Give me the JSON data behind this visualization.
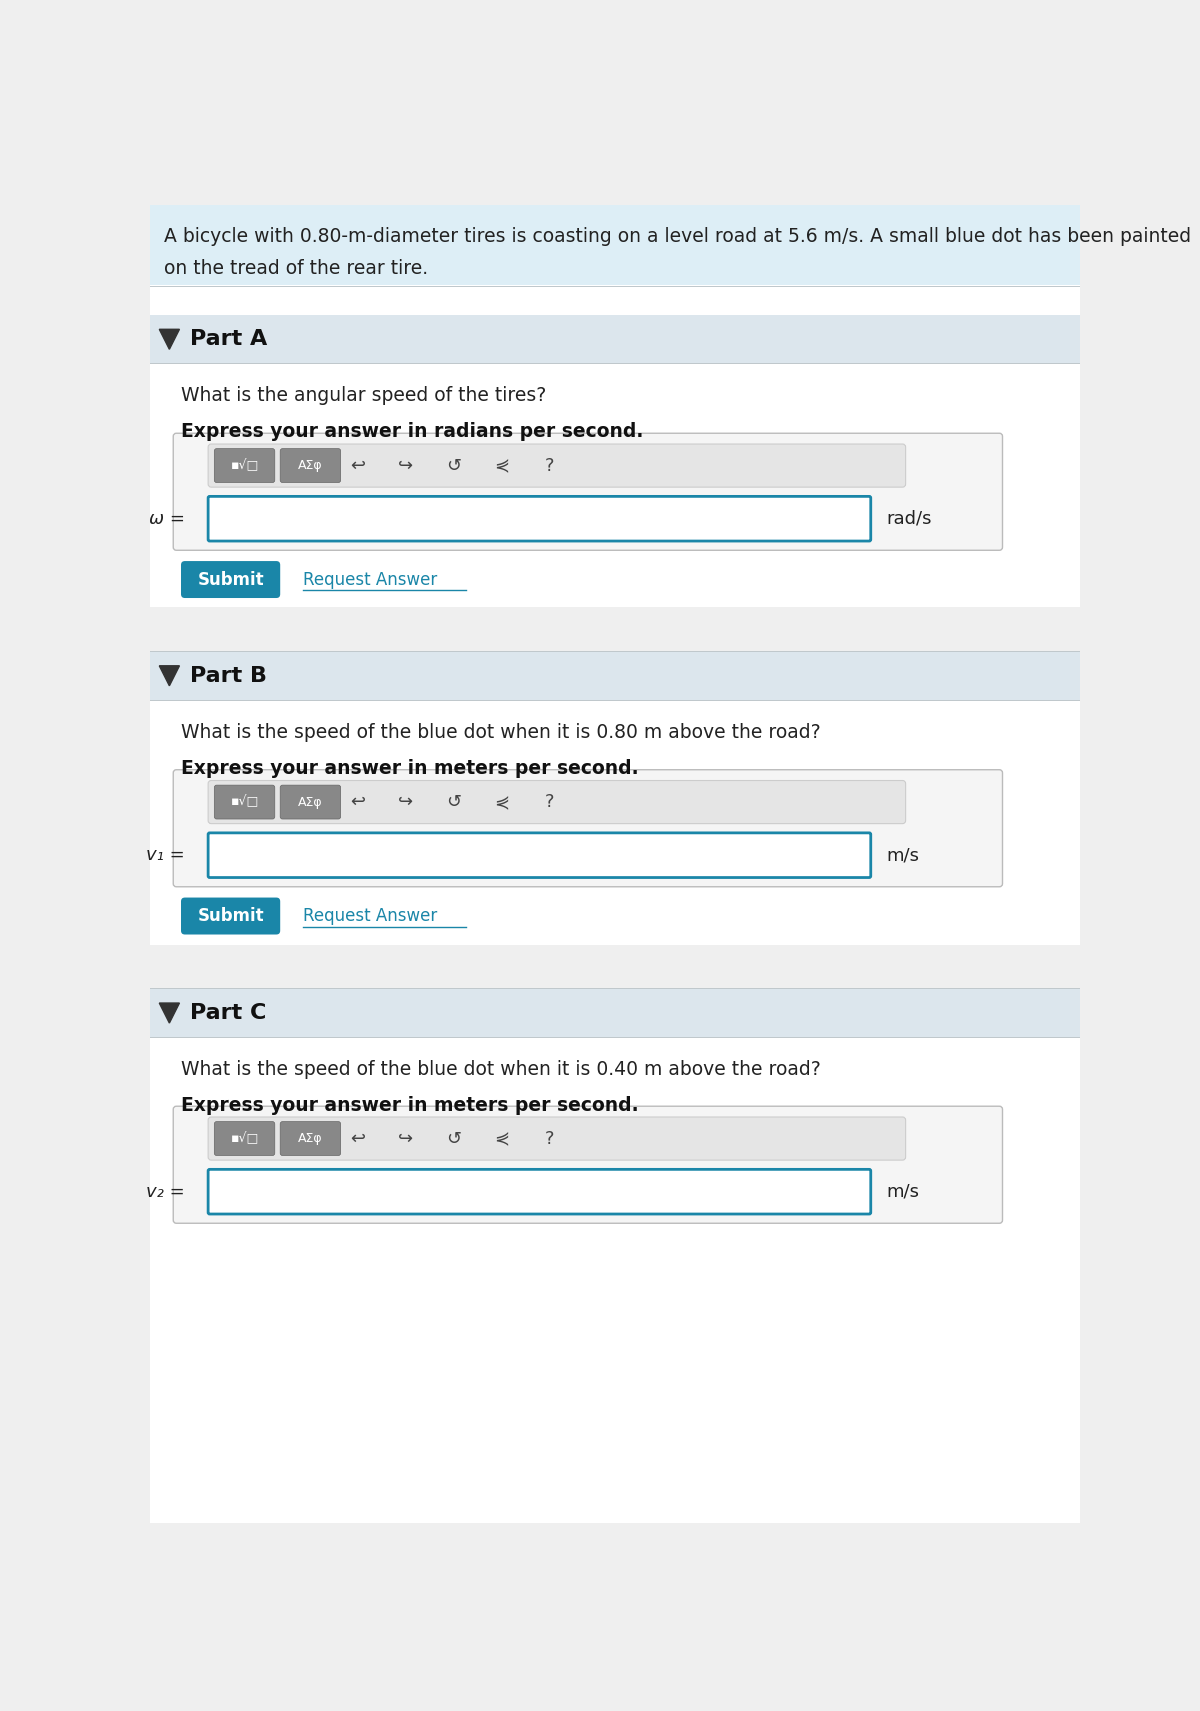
{
  "header_text_line1": "A bicycle with 0.80-m-diameter tires is coasting on a level road at 5.6 m/s. A small blue dot has been painted",
  "header_text_line2": "on the tread of the rear tire.",
  "header_bg": "#ddeef6",
  "page_bg": "#efefef",
  "white_bg": "#ffffff",
  "part_header_bg": "#dce6ed",
  "part_a_label": "Part A",
  "part_b_label": "Part B",
  "part_c_label": "Part C",
  "part_a_question": "What is the angular speed of the tires?",
  "part_a_express": "Express your answer in radians per second.",
  "part_a_var": "ω =",
  "part_a_unit": "rad/s",
  "part_b_question": "What is the speed of the blue dot when it is 0.80 m above the road?",
  "part_b_express": "Express your answer in meters per second.",
  "part_b_var": "v₁ =",
  "part_b_unit": "m/s",
  "part_c_question": "What is the speed of the blue dot when it is 0.40 m above the road?",
  "part_c_express": "Express your answer in meters per second.",
  "part_c_var": "v₂ =",
  "part_c_unit": "m/s",
  "submit_bg": "#1a86a8",
  "submit_text_color": "#ffffff",
  "request_answer_color": "#1a86a8",
  "input_border": "#1a86a8",
  "separator_color": "#c0c8cc",
  "toolbar_btn_bg": "#888888"
}
